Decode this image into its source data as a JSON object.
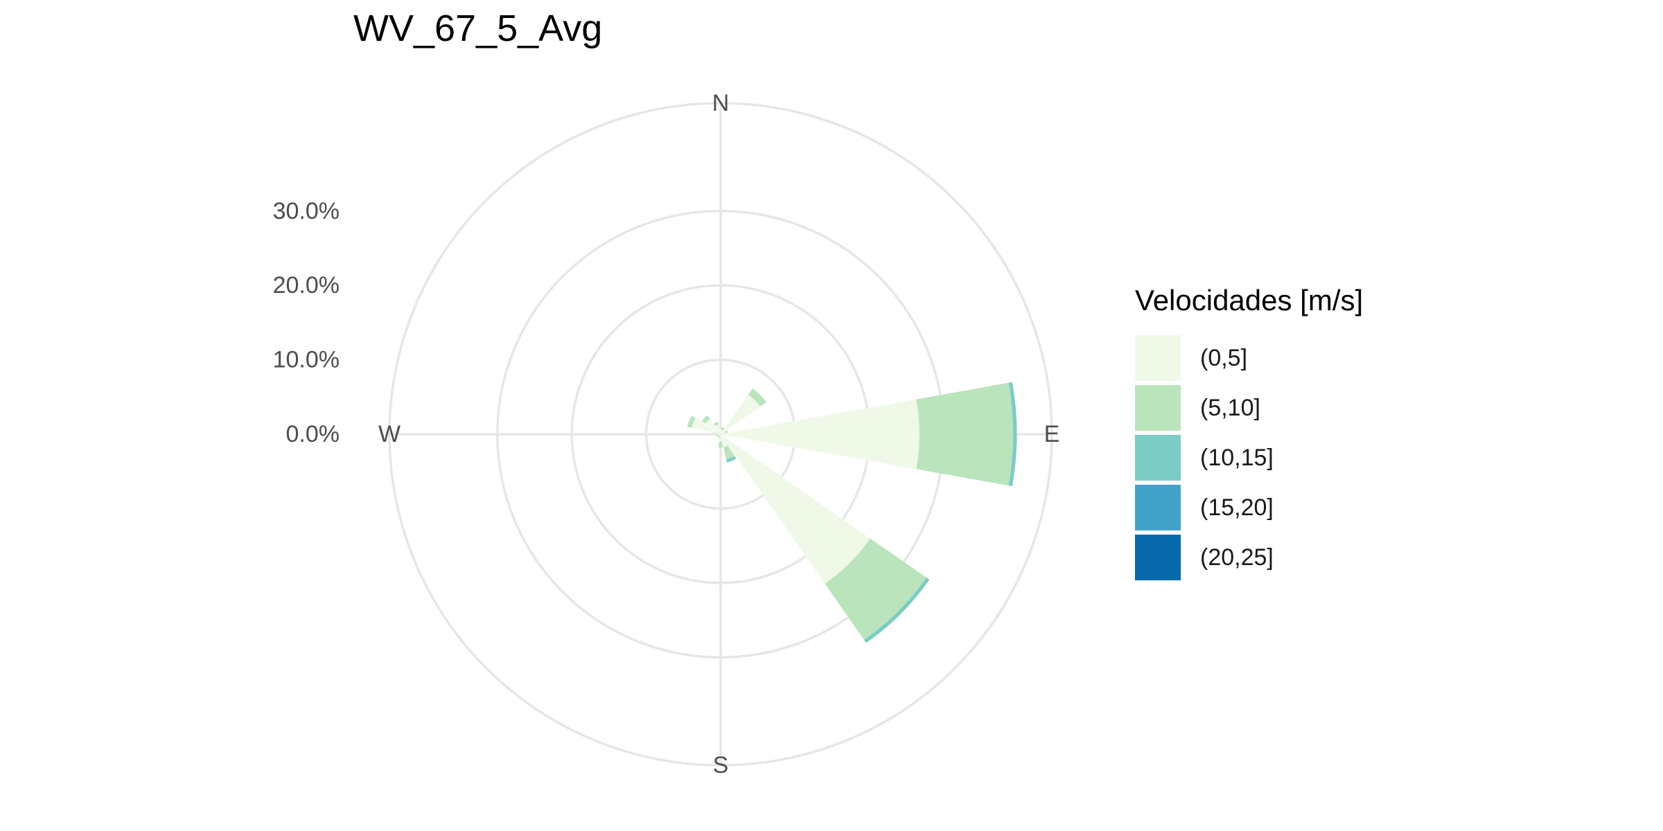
{
  "chart_data": {
    "type": "windrose",
    "title": "WV_67_5_Avg",
    "radial_axis": {
      "ticks": [
        "0.0%",
        "10.0%",
        "20.0%",
        "30.0%"
      ],
      "tick_values": [
        0,
        10,
        20,
        30
      ],
      "max": 44.5,
      "unit": "%"
    },
    "cardinal_labels": [
      "N",
      "E",
      "S",
      "W"
    ],
    "legend": {
      "title": "Velocidades [m/s]",
      "placement": "right",
      "entries": [
        {
          "label": "(0,5]",
          "color": "#f0f9e8"
        },
        {
          "label": "(5,10]",
          "color": "#bae4bc"
        },
        {
          "label": "(10,15]",
          "color": "#7bccc4"
        },
        {
          "label": "(15,20]",
          "color": "#43a2ca"
        },
        {
          "label": "(20,25]",
          "color": "#0868ac"
        }
      ]
    },
    "grid": true,
    "sectors": [
      {
        "direction_deg": 0,
        "stack": [
          0.6,
          0.0,
          0.0,
          0.0,
          0.0
        ]
      },
      {
        "direction_deg": 22.5,
        "stack": [
          0.6,
          0.4,
          0.0,
          0.0,
          0.0
        ]
      },
      {
        "direction_deg": 45,
        "stack": [
          6.5,
          1.0,
          0.0,
          0.0,
          0.0
        ]
      },
      {
        "direction_deg": 67.5,
        "stack": [
          0.6,
          0.4,
          0.0,
          0.0,
          0.0
        ]
      },
      {
        "direction_deg": 90,
        "stack": [
          26.7,
          12.6,
          0.5,
          0.0,
          0.0
        ]
      },
      {
        "direction_deg": 135,
        "stack": [
          24.5,
          9.2,
          0.5,
          0.0,
          0.0
        ]
      },
      {
        "direction_deg": 157.5,
        "stack": [
          1.8,
          1.7,
          0.4,
          0.0,
          0.0
        ]
      },
      {
        "direction_deg": 180,
        "stack": [
          1.0,
          0.8,
          0.0,
          0.0,
          0.0
        ]
      },
      {
        "direction_deg": 202.5,
        "stack": [
          0.3,
          0.2,
          0.0,
          0.0,
          0.0
        ]
      },
      {
        "direction_deg": 225,
        "stack": [
          0.3,
          0.2,
          0.0,
          0.0,
          0.0
        ]
      },
      {
        "direction_deg": 247.5,
        "stack": [
          0.4,
          0.2,
          0.0,
          0.0,
          0.0
        ]
      },
      {
        "direction_deg": 292.5,
        "stack": [
          4.0,
          0.6,
          0.0,
          0.0,
          0.0
        ]
      },
      {
        "direction_deg": 315,
        "stack": [
          2.5,
          0.6,
          0.0,
          0.0,
          0.0
        ]
      },
      {
        "direction_deg": 337.5,
        "stack": [
          1.3,
          0.4,
          0.0,
          0.0,
          0.0
        ]
      }
    ]
  }
}
